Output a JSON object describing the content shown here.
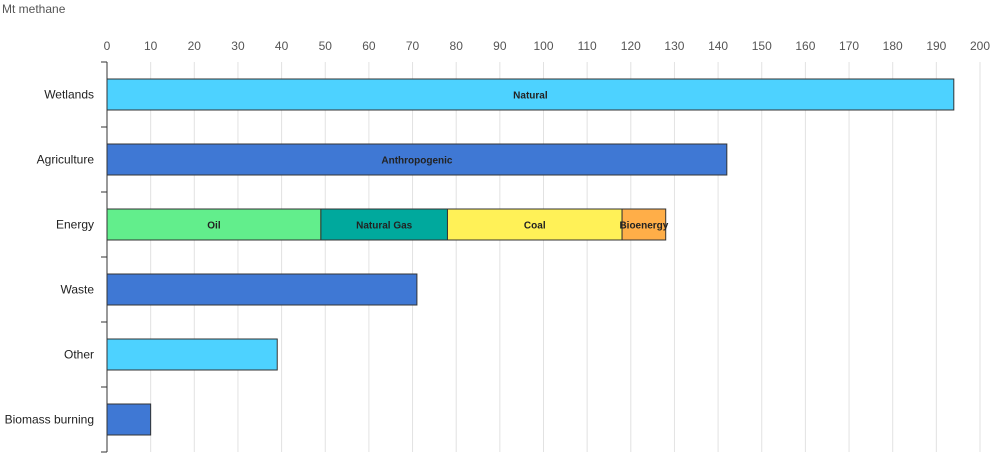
{
  "chart_data": {
    "type": "bar",
    "orientation": "horizontal",
    "stacked": true,
    "unit_label": "Mt methane",
    "xlim": [
      0,
      200
    ],
    "x_ticks": [
      0,
      10,
      20,
      30,
      40,
      50,
      60,
      70,
      80,
      90,
      100,
      110,
      120,
      130,
      140,
      150,
      160,
      170,
      180,
      190,
      200
    ],
    "grid": true,
    "categories": [
      "Wetlands",
      "Agriculture",
      "Energy",
      "Waste",
      "Other",
      "Biomass burning"
    ],
    "rows": [
      {
        "category": "Wetlands",
        "segments": [
          {
            "label": "Natural",
            "value": 194,
            "color": "#4dd2ff"
          }
        ]
      },
      {
        "category": "Agriculture",
        "segments": [
          {
            "label": "Anthropogenic",
            "value": 142,
            "color": "#3f78d4"
          }
        ]
      },
      {
        "category": "Energy",
        "segments": [
          {
            "label": "Oil",
            "value": 49,
            "color": "#62ee8c"
          },
          {
            "label": "Natural Gas",
            "value": 29,
            "color": "#00a99d"
          },
          {
            "label": "Coal",
            "value": 40,
            "color": "#fff157"
          },
          {
            "label": "Bioenergy",
            "value": 10,
            "color": "#ffae48"
          }
        ]
      },
      {
        "category": "Waste",
        "segments": [
          {
            "label": "",
            "value": 71,
            "color": "#3f78d4"
          }
        ]
      },
      {
        "category": "Other",
        "segments": [
          {
            "label": "",
            "value": 39,
            "color": "#4dd2ff"
          }
        ]
      },
      {
        "category": "Biomass burning",
        "segments": [
          {
            "label": "",
            "value": 10,
            "color": "#3f78d4"
          }
        ]
      }
    ]
  }
}
